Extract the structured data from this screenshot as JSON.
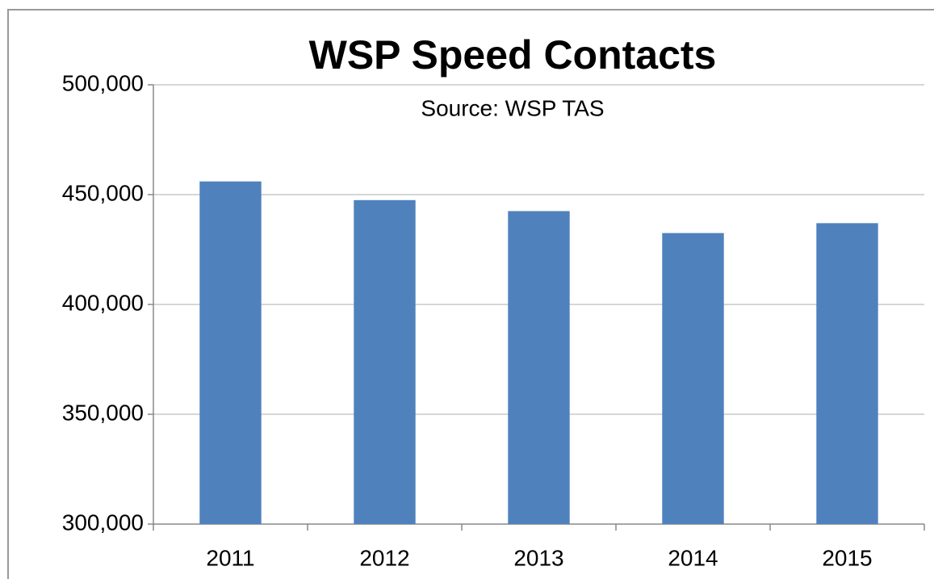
{
  "chart_data": {
    "type": "bar",
    "title": "WSP Speed Contacts",
    "subtitle": "Source:  WSP TAS",
    "categories": [
      "2011",
      "2012",
      "2013",
      "2014",
      "2015"
    ],
    "values": [
      456000,
      447500,
      442500,
      432500,
      437000
    ],
    "color": "#4f81bd",
    "ylim": [
      300000,
      500000
    ],
    "yticks": [
      {
        "value": 300000,
        "label": "300,000"
      },
      {
        "value": 350000,
        "label": "350,000"
      },
      {
        "value": 400000,
        "label": "400,000"
      },
      {
        "value": 450000,
        "label": "450,000"
      },
      {
        "value": 500000,
        "label": "500,000"
      }
    ],
    "grid": true
  }
}
